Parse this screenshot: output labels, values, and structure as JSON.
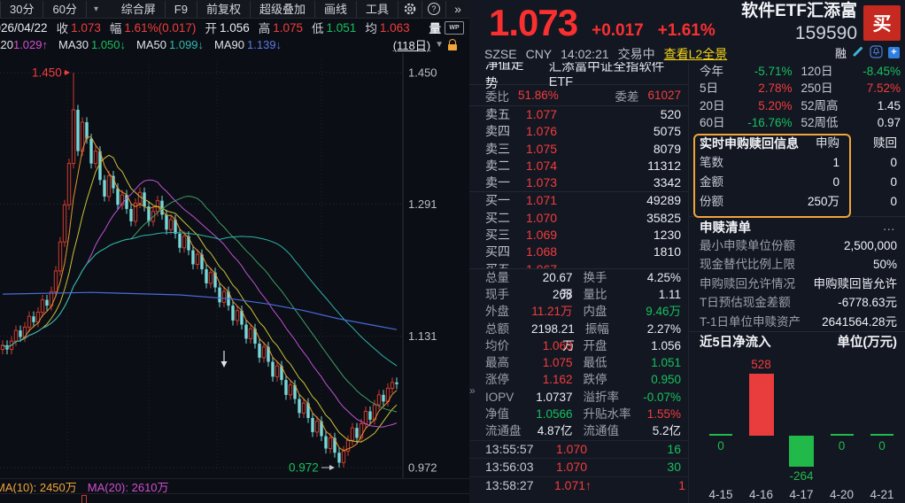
{
  "kline": {
    "toolbar": {
      "tf_30m": "30分",
      "tf_60m": "60分",
      "caret": "▾",
      "items": [
        "综合屏",
        "F9",
        "前复权",
        "超级叠加",
        "画线",
        "工具"
      ],
      "help": "?",
      "more": "»"
    },
    "info": {
      "date": "2026/04/22",
      "close_l": "收",
      "close": "1.073",
      "amp_l": "幅",
      "amp": "1.61%(0.017)",
      "open_l": "开",
      "open": "1.056",
      "high_l": "高",
      "high": "1.075",
      "low_l": "低",
      "low": "1.051",
      "avg_l": "均",
      "avg": "1.063",
      "vol_l": "量",
      "wp": "WP"
    },
    "ma": {
      "ma20_l": "MA20",
      "ma20": "1.029↑",
      "ma30_l": "MA30",
      "ma30": "1.050↓",
      "ma50_l": "MA50",
      "ma50": "1.099↓",
      "ma90_l": "MA90",
      "ma90": "1.139↓",
      "period": "(118日)",
      "caret": "▼"
    },
    "vol_ma10": "MA(10): 2450万",
    "vol_ma20": "MA(20): 2610万"
  },
  "quote": {
    "price": "1.073",
    "change": "+0.017",
    "pct": "+1.61%",
    "name": "软件ETF汇添富",
    "code": "159590",
    "buy_btn": "买",
    "exchange": "SZSE",
    "currency": "CNY",
    "time": "14:02:21",
    "status": "交易中",
    "l2_link": "查看L2全景",
    "margin_flag": "融",
    "add_btn": "+"
  },
  "nav": {
    "tab": "净值走势",
    "fund_name": "汇添富中证全指软件ETF"
  },
  "board": {
    "weibi_l": "委比",
    "weibi": "51.86%",
    "weicha_l": "委差",
    "weicha": "61027",
    "asks": [
      {
        "l": "卖五",
        "p": "1.077",
        "v": "520"
      },
      {
        "l": "卖四",
        "p": "1.076",
        "v": "5075"
      },
      {
        "l": "卖三",
        "p": "1.075",
        "v": "8079"
      },
      {
        "l": "卖二",
        "p": "1.074",
        "v": "11312"
      },
      {
        "l": "卖一",
        "p": "1.073",
        "v": "3342"
      }
    ],
    "bids": [
      {
        "l": "买一",
        "p": "1.071",
        "v": "49289"
      },
      {
        "l": "买二",
        "p": "1.070",
        "v": "35825"
      },
      {
        "l": "买三",
        "p": "1.069",
        "v": "1230"
      },
      {
        "l": "买四",
        "p": "1.068",
        "v": "1810"
      }
    ],
    "bid5": {
      "l": "买五",
      "p": "1.067",
      "v": ""
    },
    "stats": [
      {
        "l1": "总量",
        "v1": "20.67万",
        "c1": "flat",
        "l2": "换手",
        "v2": "4.25%",
        "c2": "flat"
      },
      {
        "l1": "现手",
        "v1": "268",
        "c1": "flat",
        "l2": "量比",
        "v2": "1.11",
        "c2": "flat"
      },
      {
        "l1": "外盘",
        "v1": "11.21万",
        "c1": "up",
        "l2": "内盘",
        "v2": "9.46万",
        "c2": "down"
      },
      {
        "l1": "总额",
        "v1": "2198.21万",
        "c1": "flat",
        "l2": "振幅",
        "v2": "2.27%",
        "c2": "flat"
      },
      {
        "l1": "均价",
        "v1": "1.063",
        "c1": "up",
        "l2": "开盘",
        "v2": "1.056",
        "c2": "flat"
      },
      {
        "l1": "最高",
        "v1": "1.075",
        "c1": "up",
        "l2": "最低",
        "v2": "1.051",
        "c2": "down"
      },
      {
        "l1": "涨停",
        "v1": "1.162",
        "c1": "up",
        "l2": "跌停",
        "v2": "0.950",
        "c2": "down"
      },
      {
        "l1": "IOPV",
        "v1": "1.0737",
        "c1": "flat",
        "l2": "溢折率",
        "v2": "-0.07%",
        "c2": "down"
      },
      {
        "l1": "净值",
        "v1": "1.0566",
        "c1": "down",
        "l2": "升贴水率",
        "v2": "1.55%",
        "c2": "up"
      },
      {
        "l1": "流通盘",
        "v1": "4.87亿",
        "c1": "flat",
        "l2": "流通值",
        "v2": "5.2亿",
        "c2": "flat"
      }
    ],
    "ticks": [
      {
        "t": "13:55:57",
        "p": "1.070",
        "arrow": "",
        "v": "16",
        "vc": "down"
      },
      {
        "t": "13:56:03",
        "p": "1.070",
        "arrow": "",
        "v": "30",
        "vc": "down"
      },
      {
        "t": "13:58:27",
        "p": "1.071",
        "arrow": "↑",
        "v": "1",
        "vc": "up"
      }
    ]
  },
  "panel": {
    "perf": [
      {
        "l1": "今年",
        "v1": "-5.71%",
        "c1": "down",
        "l2": "120日",
        "v2": "-8.45%",
        "c2": "down"
      },
      {
        "l1": "5日",
        "v1": "2.78%",
        "c1": "up",
        "l2": "250日",
        "v2": "7.52%",
        "c2": "up"
      },
      {
        "l1": "20日",
        "v1": "5.20%",
        "c1": "up",
        "l2": "52周高",
        "v2": "1.45",
        "c2": "flat"
      },
      {
        "l1": "60日",
        "v1": "-16.76%",
        "c1": "down",
        "l2": "52周低",
        "v2": "0.97",
        "c2": "flat"
      }
    ],
    "rt_title": "实时申购赎回信息",
    "rt_col_sub": "申购",
    "rt_col_red": "赎回",
    "rt_rows": [
      {
        "l": "笔数",
        "a": "1",
        "b": "0"
      },
      {
        "l": "金额",
        "a": "0",
        "b": "0"
      },
      {
        "l": "份额",
        "a": "250万",
        "b": "0"
      }
    ],
    "list_title": "申赎清单",
    "list_more": "…",
    "list_rows": [
      {
        "l": "最小申赎单位份额",
        "v": "2,500,000"
      },
      {
        "l": "现金替代比例上限",
        "v": "50%"
      },
      {
        "l": "申购赎回允许情况",
        "v": "申购赎回皆允许"
      },
      {
        "l": "T日预估现金差额",
        "v": "-6778.63元"
      },
      {
        "l": "T-1日单位申赎资产",
        "v": "2641564.28元"
      }
    ],
    "flow_title": "近5日净流入",
    "flow_unit": "单位(万元)"
  },
  "chart_data": [
    {
      "type": "candlestick",
      "y_axis_labels": [
        "1.450",
        "1.291",
        "1.131",
        "0.972"
      ],
      "ylim": [
        0.972,
        1.45
      ],
      "annotations": {
        "high": "1.450",
        "low": "0.972"
      },
      "closes": [
        1.12,
        1.115,
        1.125,
        1.138,
        1.13,
        1.142,
        1.155,
        1.148,
        1.16,
        1.175,
        1.168,
        1.185,
        1.21,
        1.245,
        1.29,
        1.34,
        1.405,
        1.355,
        1.39,
        1.37,
        1.34,
        1.355,
        1.32,
        1.3,
        1.325,
        1.31,
        1.29,
        1.302,
        1.285,
        1.27,
        1.292,
        1.305,
        1.288,
        1.27,
        1.282,
        1.295,
        1.278,
        1.26,
        1.272,
        1.255,
        1.238,
        1.252,
        1.235,
        1.218,
        1.23,
        1.212,
        1.195,
        1.208,
        1.19,
        1.172,
        1.185,
        1.168,
        1.15,
        1.162,
        1.145,
        1.128,
        1.14,
        1.122,
        1.105,
        1.118,
        1.1,
        1.082,
        1.095,
        1.078,
        1.06,
        1.072,
        1.055,
        1.038,
        1.05,
        1.032,
        1.015,
        1.028,
        1.01,
        0.995,
        1.008,
        0.99,
        0.978,
        0.992,
        1.005,
        1.02,
        1.008,
        1.025,
        1.04,
        1.03,
        1.048,
        1.06,
        1.052,
        1.068,
        1.075,
        1.073
      ],
      "high_idx": 16,
      "low_idx": 76,
      "ma_windows": [
        5,
        10,
        20,
        30,
        50
      ],
      "ma_colors": {
        "ma5": "#e8962e",
        "ma10": "#cdc338",
        "ma20": "#c052d6",
        "ma30": "#3f9e67",
        "ma50": "#2fb3ab",
        "ma90": "#4a6bdd"
      },
      "ma90_points": [
        [
          0,
          1.182
        ],
        [
          20,
          1.184
        ],
        [
          40,
          1.181
        ],
        [
          52,
          1.176
        ],
        [
          60,
          1.17
        ],
        [
          68,
          1.162
        ],
        [
          76,
          1.152
        ],
        [
          83,
          1.145
        ],
        [
          89,
          1.139
        ]
      ],
      "up_color": "#cf3b30",
      "down_color": "#76d8d8"
    },
    {
      "type": "bar",
      "title": "近5日净流入",
      "unit_label": "单位(万元)",
      "categories": [
        "4-15",
        "4-16",
        "4-17",
        "4-20",
        "4-21"
      ],
      "values": [
        0,
        528,
        -264,
        0,
        0
      ],
      "pos_color": "#e93c3c",
      "neg_color": "#21ba4a"
    }
  ]
}
